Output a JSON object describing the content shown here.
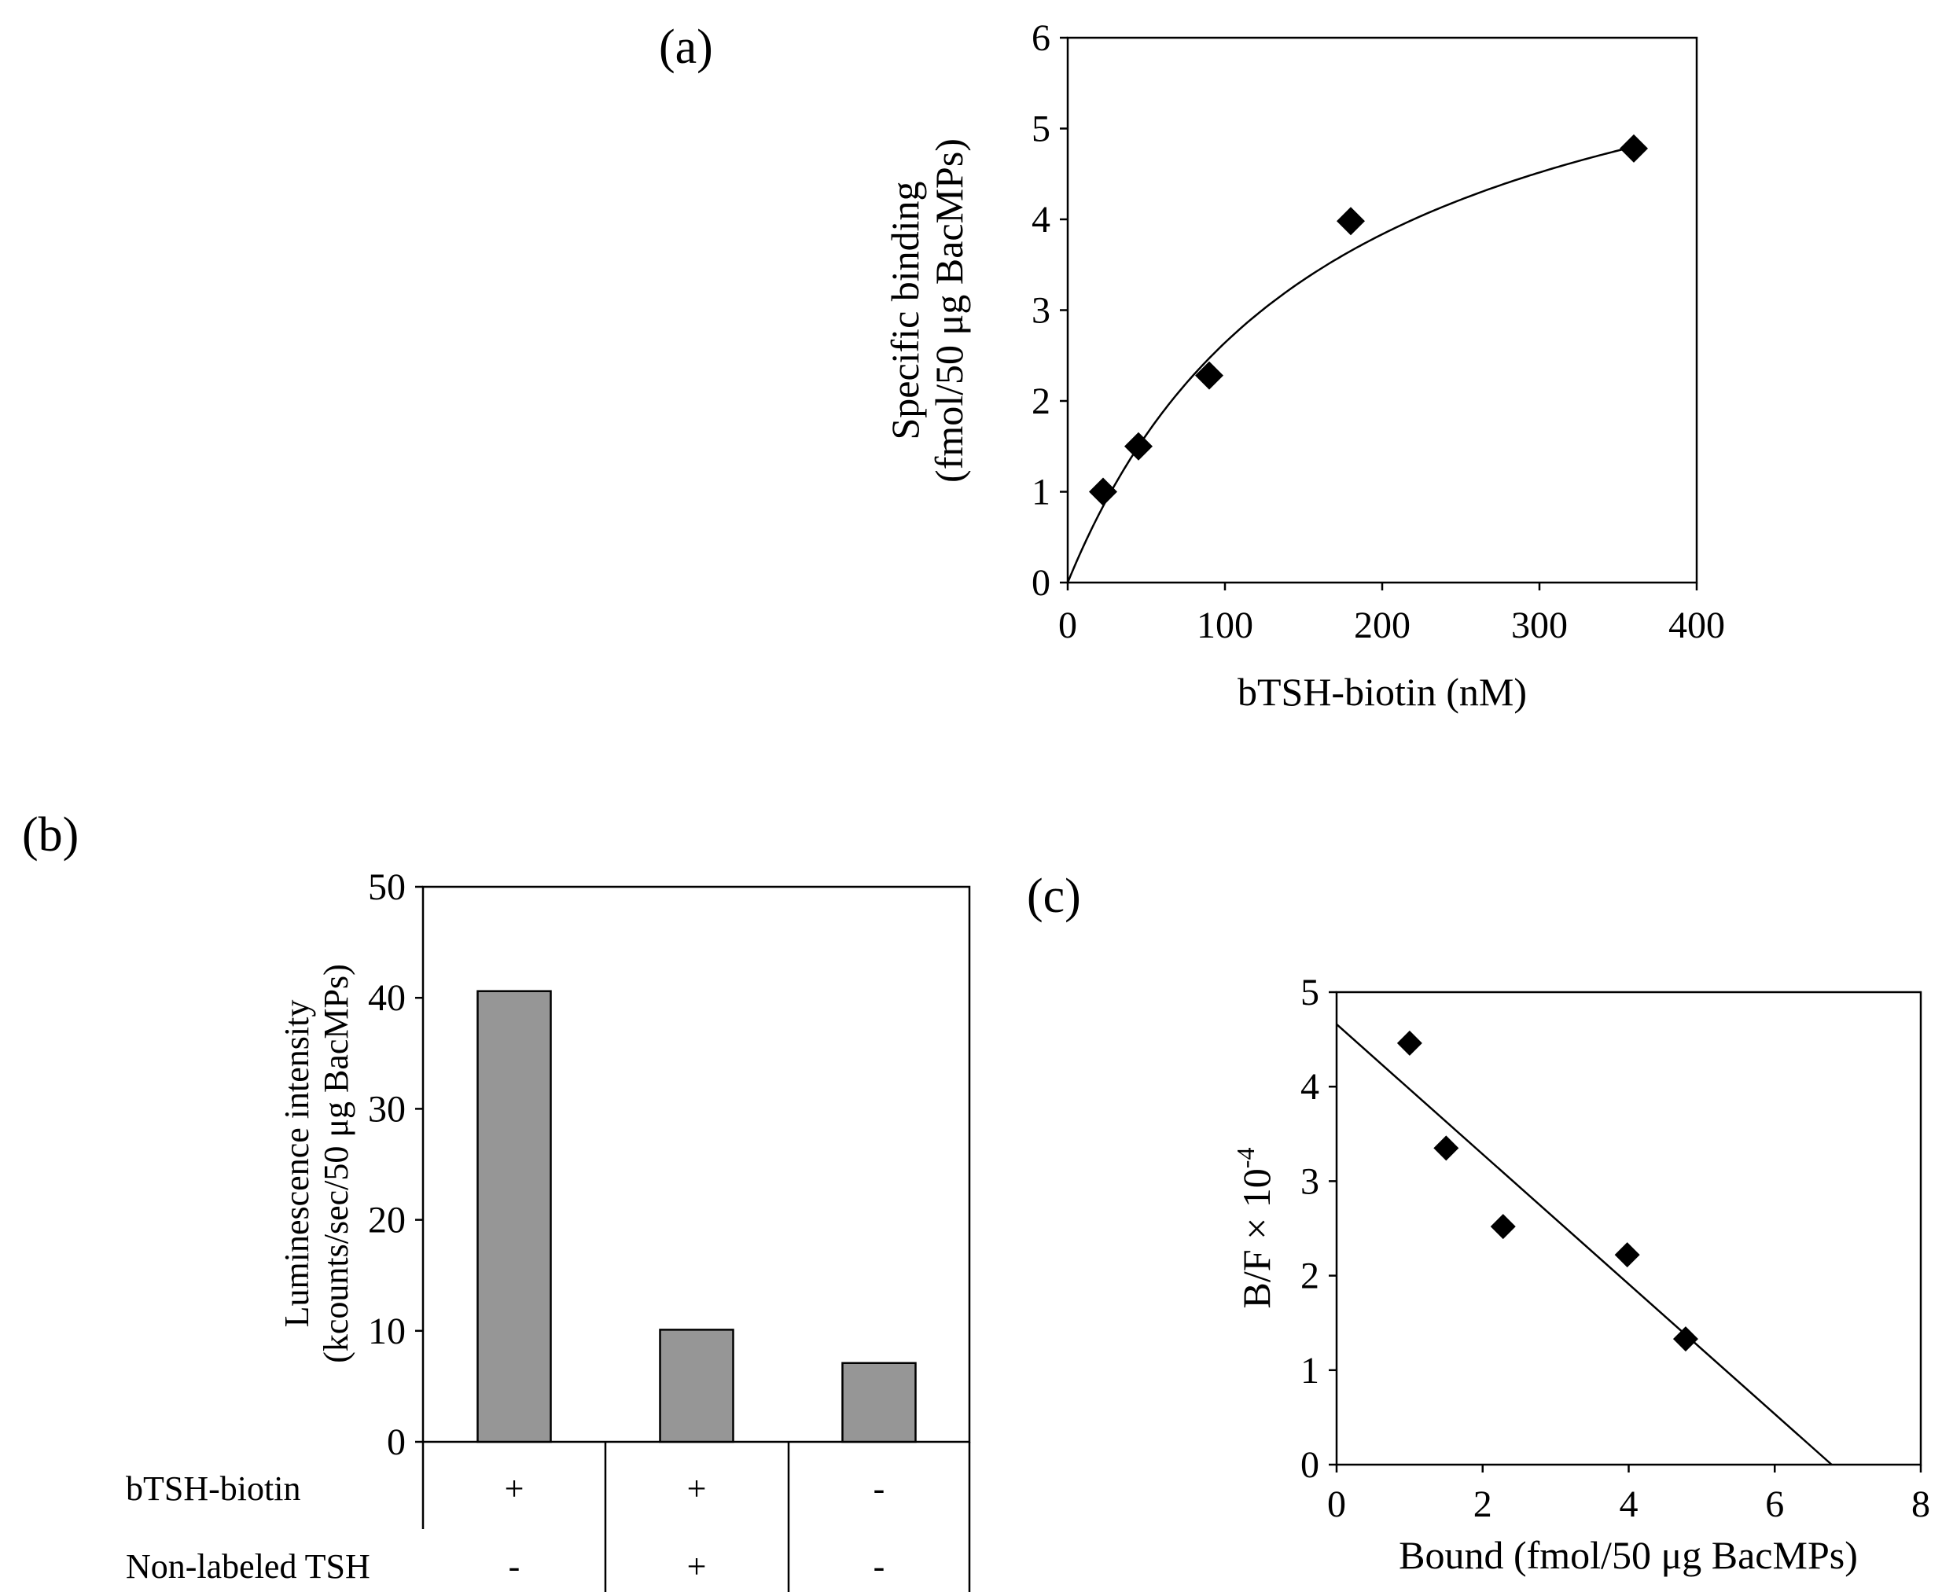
{
  "panels": {
    "a": "(a)",
    "b": "(b)",
    "c": "(c)"
  },
  "chart_data": [
    {
      "id": "a",
      "type": "scatter",
      "title": "",
      "xlabel": "bTSH-biotin (nM)",
      "ylabel": [
        "Specific binding",
        "(fmol/50 μg BacMPs)"
      ],
      "xlim": [
        0,
        400
      ],
      "ylim": [
        0,
        6
      ],
      "xticks": [
        0,
        100,
        200,
        300,
        400
      ],
      "yticks": [
        0,
        1,
        2,
        3,
        4,
        5,
        6
      ],
      "points": [
        {
          "x": 22.5,
          "y": 1.0
        },
        {
          "x": 45,
          "y": 1.5
        },
        {
          "x": 90,
          "y": 2.28
        },
        {
          "x": 180,
          "y": 3.98
        },
        {
          "x": 360,
          "y": 4.78
        }
      ],
      "fit": {
        "type": "saturation",
        "bmax": 7.0,
        "kd": 165
      }
    },
    {
      "id": "b",
      "type": "bar",
      "title": "",
      "ylabel": [
        "Luminescence intensity",
        "(kcounts/sec/50 μg BacMPs)"
      ],
      "ylim": [
        0,
        50
      ],
      "yticks": [
        0,
        10,
        20,
        30,
        40,
        50
      ],
      "values": [
        40.6,
        10.1,
        7.1
      ],
      "bar_color": "#969696",
      "rows": [
        {
          "label": "bTSH-biotin",
          "signs": [
            "+",
            "+",
            "-"
          ]
        },
        {
          "label": "Non-labeled TSH",
          "signs": [
            "-",
            "+",
            "-"
          ]
        }
      ]
    },
    {
      "id": "c",
      "type": "scatter",
      "title": "",
      "xlabel": "Bound (fmol/50 μg BacMPs)",
      "ylabel": {
        "base": "B/F × 10",
        "exponent": "-4"
      },
      "xlim": [
        0,
        8
      ],
      "ylim": [
        0,
        5
      ],
      "xticks": [
        0,
        2,
        4,
        6,
        8
      ],
      "yticks": [
        0,
        1,
        2,
        3,
        4,
        5
      ],
      "points": [
        {
          "x": 1.0,
          "y": 4.46
        },
        {
          "x": 1.5,
          "y": 3.35
        },
        {
          "x": 2.28,
          "y": 2.52
        },
        {
          "x": 3.98,
          "y": 2.22
        },
        {
          "x": 4.78,
          "y": 1.33
        }
      ],
      "fit": {
        "type": "linear",
        "x0": 0,
        "y0": 4.66,
        "x1": 6.78,
        "y1": 0
      }
    }
  ]
}
